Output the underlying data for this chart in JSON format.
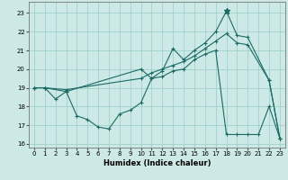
{
  "xlabel": "Humidex (Indice chaleur)",
  "xlim": [
    -0.5,
    23.5
  ],
  "ylim": [
    15.8,
    23.6
  ],
  "yticks": [
    16,
    17,
    18,
    19,
    20,
    21,
    22,
    23
  ],
  "xticks": [
    0,
    1,
    2,
    3,
    4,
    5,
    6,
    7,
    8,
    9,
    10,
    11,
    12,
    13,
    14,
    15,
    16,
    17,
    18,
    19,
    20,
    21,
    22,
    23
  ],
  "bg_color": "#cce9e5",
  "grid_color": "#99ccc8",
  "line_color": "#1a6b65",
  "line1_x": [
    0,
    1,
    2,
    3,
    4,
    5,
    6,
    7,
    8,
    9,
    10,
    11,
    12,
    13,
    14,
    15,
    16,
    17,
    18,
    19,
    20,
    21,
    22,
    23
  ],
  "line1_y": [
    19.0,
    19.0,
    18.4,
    18.8,
    17.5,
    17.3,
    16.9,
    16.8,
    17.6,
    17.8,
    18.2,
    19.5,
    19.6,
    19.9,
    20.0,
    20.5,
    20.8,
    21.0,
    16.5,
    16.5,
    16.5,
    16.5,
    18.0,
    16.3
  ],
  "line2_x": [
    0,
    1,
    3,
    10,
    11,
    12,
    13,
    14,
    15,
    16,
    17,
    18,
    19,
    20,
    22,
    23
  ],
  "line2_y": [
    19.0,
    19.0,
    18.9,
    19.5,
    19.8,
    20.0,
    20.2,
    20.4,
    20.7,
    21.1,
    21.5,
    21.9,
    21.4,
    21.3,
    19.4,
    16.3
  ],
  "line3_x": [
    0,
    1,
    3,
    10,
    11,
    12,
    13,
    14,
    15,
    16,
    17,
    18,
    19,
    20,
    22,
    23
  ],
  "line3_y": [
    19.0,
    19.0,
    18.8,
    20.0,
    19.5,
    19.9,
    21.1,
    20.5,
    21.0,
    21.4,
    22.0,
    23.1,
    21.8,
    21.7,
    19.4,
    16.3
  ],
  "star_x": 18,
  "star_y": 23.1
}
